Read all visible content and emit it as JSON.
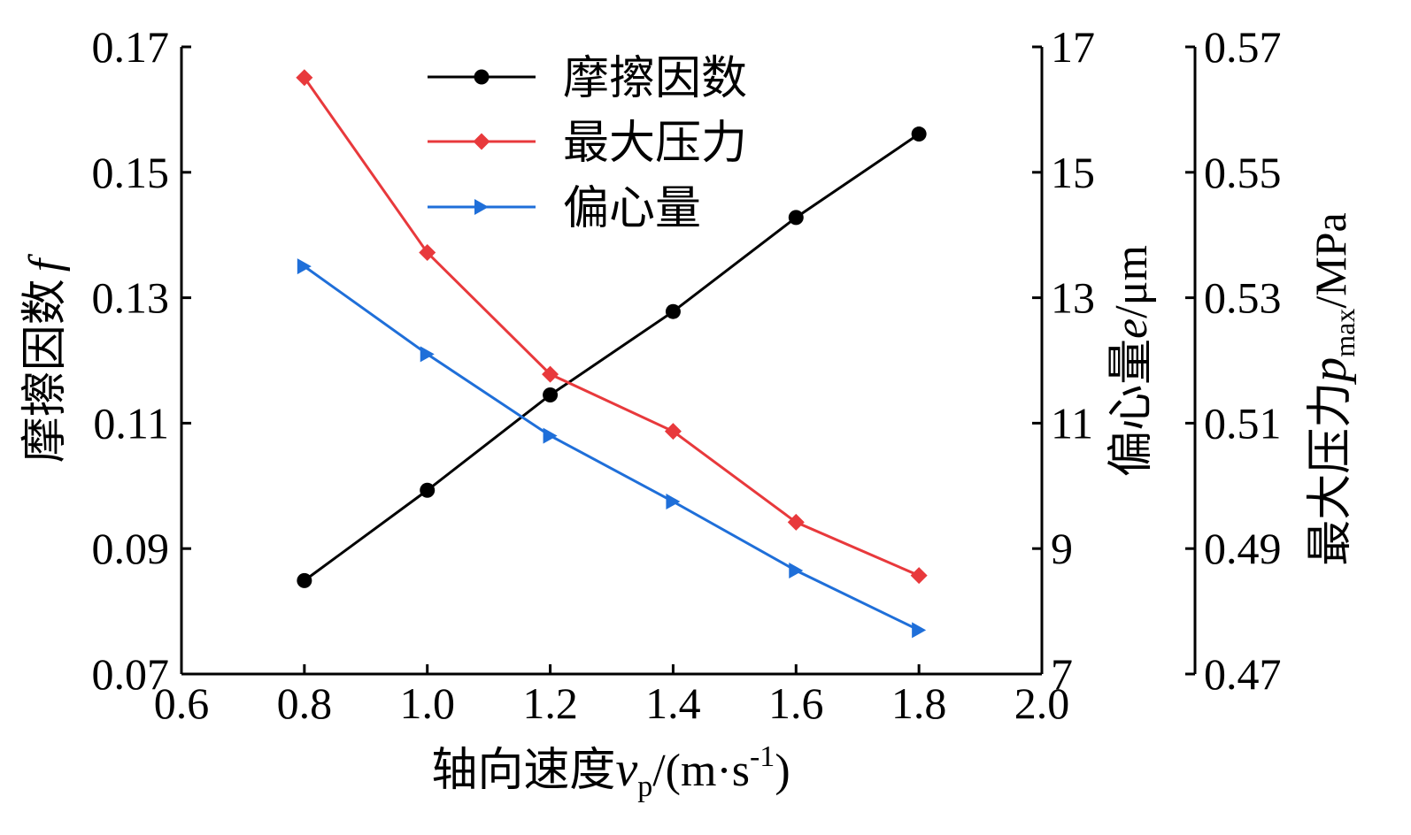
{
  "chart_data": {
    "type": "line",
    "x": [
      0.8,
      1.0,
      1.2,
      1.4,
      1.6,
      1.8
    ],
    "xlim": [
      0.6,
      2.0
    ],
    "xticks": [
      "0.6",
      "0.8",
      "1.0",
      "1.2",
      "1.4",
      "1.6",
      "1.8",
      "2.0"
    ],
    "xlabel": {
      "prefix": "轴向速度",
      "var": "v",
      "sub": "p",
      "mid": "/(m·s",
      "sup": "-1",
      "end": ")"
    },
    "y_left": {
      "lim": [
        0.07,
        0.17
      ],
      "ticks": [
        "0.07",
        "0.09",
        "0.11",
        "0.13",
        "0.15",
        "0.17"
      ],
      "label": {
        "prefix": "摩擦因数",
        "var": "f"
      }
    },
    "y_right1": {
      "lim": [
        7,
        17
      ],
      "ticks": [
        "7",
        "9",
        "11",
        "13",
        "15",
        "17"
      ],
      "label": {
        "prefix": "偏心量",
        "var": "e",
        "unit": "/μm"
      }
    },
    "y_right2": {
      "lim": [
        0.47,
        0.57
      ],
      "ticks": [
        "0.47",
        "0.49",
        "0.51",
        "0.53",
        "0.55",
        "0.57"
      ],
      "label": {
        "prefix": "最大压力",
        "var": "p",
        "sub": "max",
        "unit": "/MPa"
      }
    },
    "series": [
      {
        "name": "摩擦因数",
        "axis": "left",
        "marker": "circle",
        "color": "#000000",
        "values": [
          0.0849,
          0.0993,
          0.1145,
          0.1278,
          0.1428,
          0.1561
        ]
      },
      {
        "name": "最大压力",
        "axis": "right2",
        "marker": "diamond",
        "color": "#e8393c",
        "values": [
          0.5651,
          0.5372,
          0.5178,
          0.5087,
          0.4942,
          0.4857
        ]
      },
      {
        "name": "偏心量",
        "axis": "right1",
        "marker": "triangle-right",
        "color": "#1f6fd9",
        "values": [
          13.5,
          12.1,
          10.8,
          9.75,
          8.65,
          7.7
        ]
      }
    ]
  }
}
